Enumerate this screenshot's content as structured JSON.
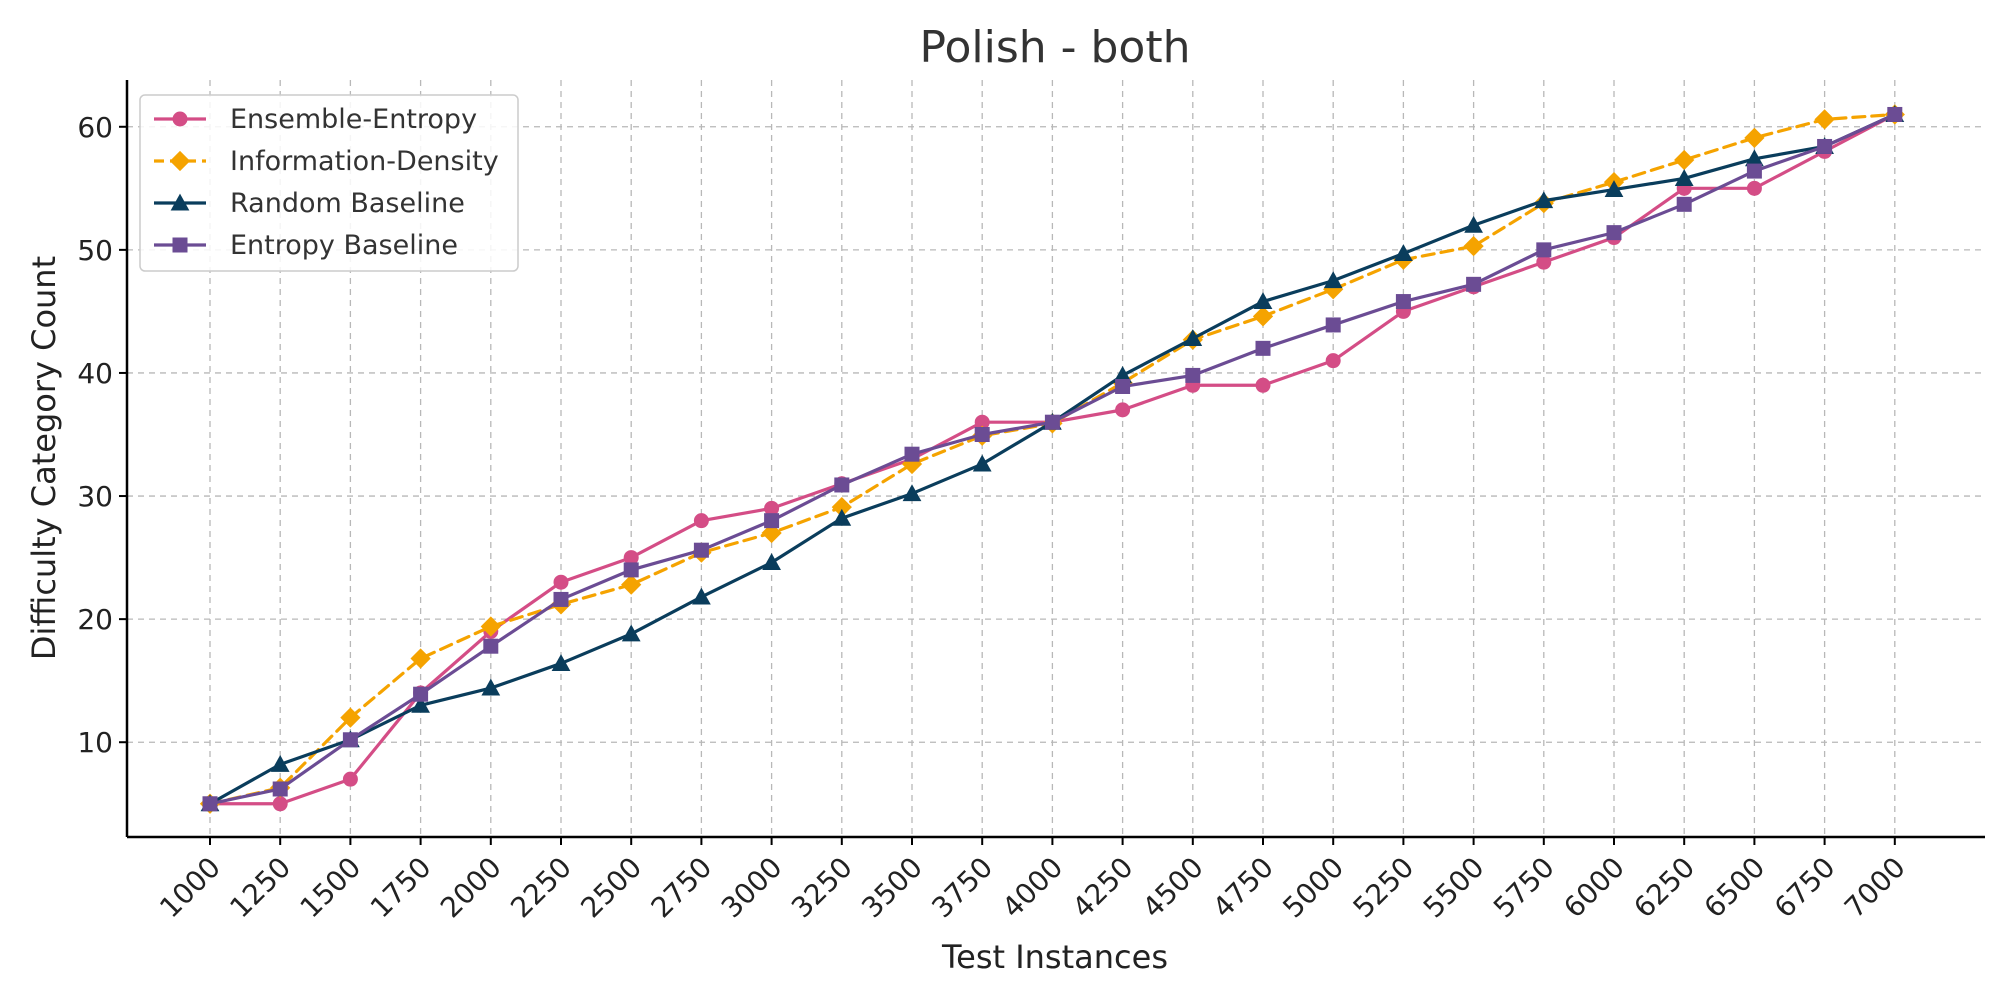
{
  "chart_data": {
    "type": "line",
    "title": "Polish - both",
    "xlabel": "Test Instances",
    "ylabel": "Difficulty Category Count",
    "x": [
      1000,
      1250,
      1500,
      1750,
      2000,
      2250,
      2500,
      2750,
      3000,
      3250,
      3500,
      3750,
      4000,
      4250,
      4500,
      4750,
      5000,
      5250,
      5500,
      5750,
      6000,
      6250,
      6500,
      6750,
      7000
    ],
    "x_tick_labels": [
      "1000",
      "1250",
      "1500",
      "1750",
      "2000",
      "2250",
      "2500",
      "2750",
      "3000",
      "3250",
      "3500",
      "3750",
      "4000",
      "4250",
      "4500",
      "4750",
      "5000",
      "5250",
      "5500",
      "5750",
      "6000",
      "6250",
      "6500",
      "6750",
      "7000"
    ],
    "y_ticks": [
      10,
      20,
      30,
      40,
      50,
      60
    ],
    "ylim": [
      2.3,
      63.8
    ],
    "grid": true,
    "legend_position": "top-left",
    "series": [
      {
        "name": "Ensemble-Entropy",
        "color": "#d44d86",
        "marker": "circle",
        "dashed": false,
        "values": [
          5,
          5,
          7,
          14,
          19,
          23,
          25,
          28,
          29,
          31,
          33,
          36,
          36,
          37,
          39,
          39,
          41,
          45,
          47,
          49,
          51,
          55,
          55,
          58,
          61
        ]
      },
      {
        "name": "Information-Density",
        "color": "#f5a300",
        "marker": "diamond",
        "dashed": true,
        "values": [
          5,
          6.3,
          12,
          16.8,
          19.4,
          21.2,
          22.8,
          25.4,
          27,
          29.1,
          32.6,
          34.9,
          35.9,
          39.2,
          42.7,
          44.6,
          46.8,
          49.2,
          50.3,
          53.8,
          55.5,
          57.3,
          59.1,
          60.6,
          61
        ]
      },
      {
        "name": "Random Baseline",
        "color": "#0a3d5c",
        "marker": "triangle",
        "dashed": false,
        "values": [
          5,
          8.2,
          10.2,
          13,
          14.4,
          16.4,
          18.8,
          21.8,
          24.6,
          28.2,
          30.2,
          32.6,
          36,
          39.8,
          42.8,
          45.8,
          47.5,
          49.7,
          52,
          54,
          54.9,
          55.8,
          57.4,
          58.4,
          61
        ]
      },
      {
        "name": "Entropy Baseline",
        "color": "#6b4c94",
        "marker": "square",
        "dashed": false,
        "values": [
          5,
          6.2,
          10.2,
          13.9,
          17.8,
          21.6,
          24,
          25.6,
          28,
          30.9,
          33.4,
          35,
          36,
          38.9,
          39.8,
          42,
          43.9,
          45.8,
          47.2,
          50,
          51.4,
          53.7,
          56.4,
          58.4,
          61
        ]
      }
    ]
  }
}
